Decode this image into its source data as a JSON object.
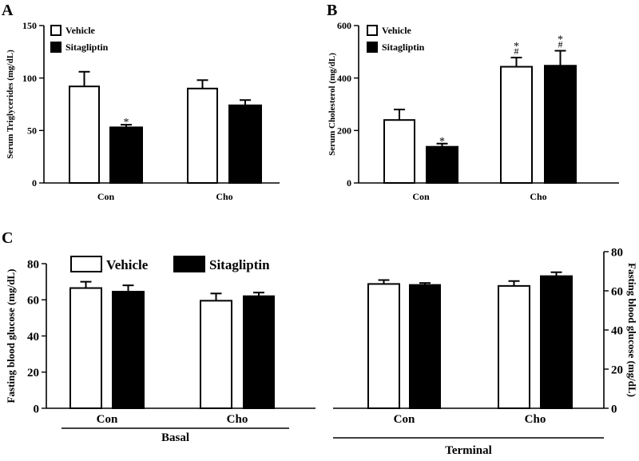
{
  "chart_data": [
    {
      "panel": "A",
      "type": "bar",
      "ylabel": "Serum Triglycerides  (mg/dL)",
      "ylim": [
        0,
        150
      ],
      "yticks": [
        0,
        50,
        100,
        150
      ],
      "categories": [
        "Con",
        "Cho"
      ],
      "legend": [
        "Vehicle",
        "Sitagliptin"
      ],
      "series": [
        {
          "name": "Vehicle",
          "values": [
            92,
            90
          ],
          "errors": [
            14,
            8
          ],
          "marks": [
            "",
            ""
          ]
        },
        {
          "name": "Sitagliptin",
          "values": [
            53,
            74
          ],
          "errors": [
            2.5,
            5
          ],
          "marks": [
            "*",
            ""
          ]
        }
      ]
    },
    {
      "panel": "B",
      "type": "bar",
      "ylabel": "Serum Cholesterol (mg/dL)",
      "ylim": [
        0,
        600
      ],
      "yticks": [
        0,
        200,
        400,
        600
      ],
      "categories": [
        "Con",
        "Cho"
      ],
      "legend": [
        "Vehicle",
        "Sitagliptin"
      ],
      "series": [
        {
          "name": "Vehicle",
          "values": [
            240,
            443
          ],
          "errors": [
            40,
            35
          ],
          "marks": [
            "",
            "*\n#"
          ]
        },
        {
          "name": "Sitagliptin",
          "values": [
            138,
            447
          ],
          "errors": [
            12,
            57
          ],
          "marks": [
            "*",
            "*\n#"
          ]
        }
      ]
    },
    {
      "panel": "C",
      "type": "bar",
      "ylabel": "Fasting blood glucose (mg/dL)",
      "ylim": [
        0,
        80
      ],
      "yticks": [
        0,
        20,
        40,
        60,
        80
      ],
      "categories": [
        "Con",
        "Cho"
      ],
      "group": "Basal",
      "legend": [
        "Vehicle",
        "Sitagliptin"
      ],
      "series": [
        {
          "name": "Vehicle",
          "values": [
            66.5,
            59.5
          ],
          "errors": [
            3.5,
            4
          ],
          "marks": [
            "",
            ""
          ]
        },
        {
          "name": "Sitagliptin",
          "values": [
            64.5,
            62
          ],
          "errors": [
            3.5,
            2
          ],
          "marks": [
            "",
            ""
          ]
        }
      ]
    },
    {
      "panel": "",
      "type": "bar",
      "ylabel": "Fasting blood glucose (mg/dL)",
      "ylim": [
        0,
        80
      ],
      "yticks": [
        0,
        20,
        40,
        60,
        80
      ],
      "categories": [
        "Con",
        "Cho"
      ],
      "group": "Terminal",
      "legend": [],
      "series": [
        {
          "name": "Vehicle",
          "values": [
            63.5,
            62.5
          ],
          "errors": [
            2,
            2.5
          ],
          "marks": [
            "",
            ""
          ]
        },
        {
          "name": "Sitagliptin",
          "values": [
            63,
            67.5
          ],
          "errors": [
            1,
            2
          ],
          "marks": [
            "",
            ""
          ]
        }
      ]
    }
  ]
}
